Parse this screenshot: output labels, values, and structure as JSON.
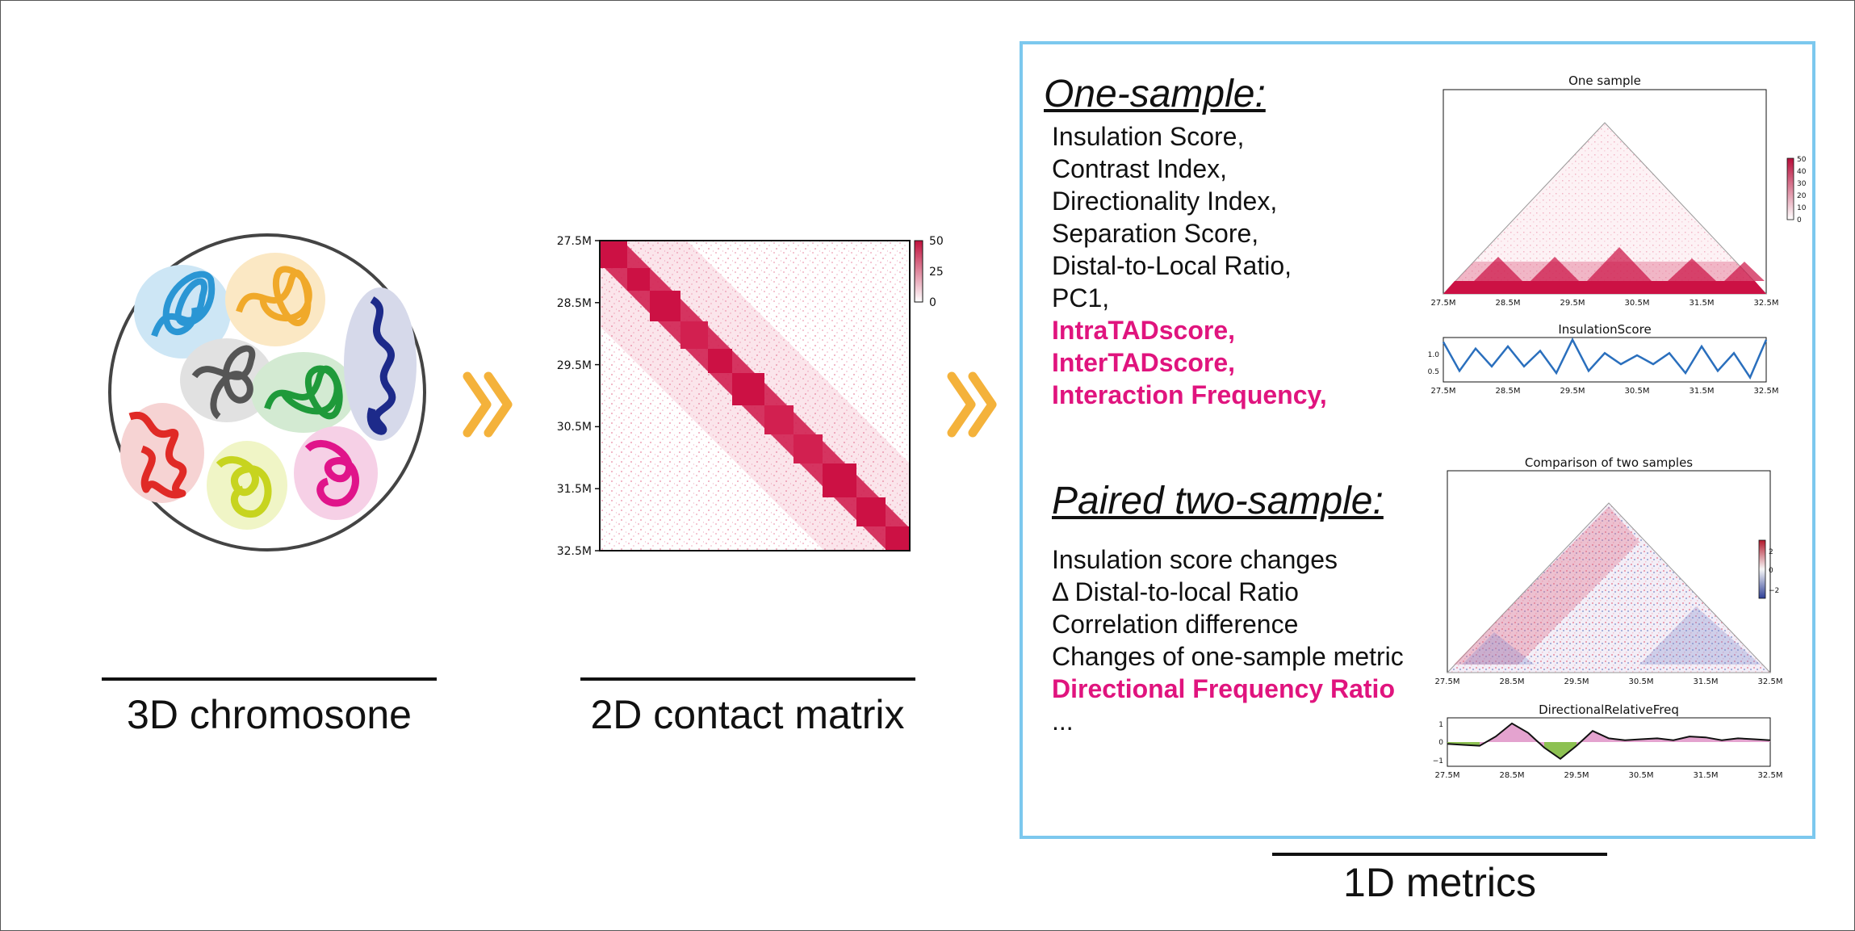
{
  "panels": {
    "chromosome": {
      "caption": "3D chromosone"
    },
    "matrix": {
      "caption": "2D contact matrix",
      "y_ticks": [
        "27.5M",
        "28.5M",
        "29.5M",
        "30.5M",
        "31.5M",
        "32.5M"
      ],
      "colorbar_ticks": [
        "50",
        "25",
        "0"
      ]
    },
    "metrics": {
      "caption": "1D metrics",
      "one_sample": {
        "heading": "One-sample:",
        "items": [
          {
            "text": "Insulation Score,",
            "highlight": false
          },
          {
            "text": "Contrast Index,",
            "highlight": false
          },
          {
            "text": "Directionality Index,",
            "highlight": false
          },
          {
            "text": "Separation Score,",
            "highlight": false
          },
          {
            "text": "Distal-to-Local Ratio,",
            "highlight": false
          },
          {
            "text": "PC1,",
            "highlight": false
          },
          {
            "text": "IntraTADscore,",
            "highlight": true
          },
          {
            "text": "InterTADscore,",
            "highlight": true
          },
          {
            "text": "Interaction Frequency,",
            "highlight": true
          }
        ]
      },
      "paired": {
        "heading": "Paired two-sample:",
        "items": [
          {
            "text": "Insulation score changes",
            "highlight": false
          },
          {
            "text": "Δ Distal-to-local Ratio",
            "highlight": false
          },
          {
            "text": "Correlation difference",
            "highlight": false
          },
          {
            "text": "Changes of one-sample metric",
            "highlight": false
          },
          {
            "text": "Directional Frequency Ratio",
            "highlight": true
          },
          {
            "text": "...",
            "highlight": false
          }
        ]
      }
    }
  },
  "mini_charts": {
    "one_sample": {
      "title": "One sample",
      "colorbar_ticks": [
        "50",
        "40",
        "30",
        "20",
        "10",
        "0"
      ]
    },
    "insulation": {
      "title": "InsulationScore",
      "y_ticks": [
        "1.0",
        "0.5"
      ]
    },
    "two_sample": {
      "title": "Comparison of two samples",
      "colorbar_ticks": [
        "2",
        "0",
        "−2"
      ]
    },
    "directional": {
      "title": "DirectionalRelativeFreq",
      "y_ticks": [
        "1",
        "0",
        "−1"
      ]
    },
    "x_ticks": [
      "27.5M",
      "28.5M",
      "29.5M",
      "30.5M",
      "31.5M",
      "32.5M"
    ]
  },
  "chart_data": [
    {
      "type": "line",
      "title": "InsulationScore",
      "x": [
        27.5,
        27.75,
        28.0,
        28.25,
        28.5,
        28.75,
        29.0,
        29.25,
        29.5,
        29.75,
        30.0,
        30.25,
        30.5,
        30.75,
        31.0,
        31.25,
        31.5,
        31.75,
        32.0,
        32.25,
        32.5
      ],
      "series": [
        {
          "values": [
            1.25,
            0.6,
            1.1,
            0.7,
            1.15,
            0.7,
            1.05,
            0.55,
            1.3,
            0.6,
            1.0,
            0.75,
            0.95,
            0.75,
            1.0,
            0.55,
            1.15,
            0.6,
            1.0,
            0.45,
            1.3
          ]
        }
      ],
      "ylim": [
        0.35,
        1.35
      ],
      "color": "#2a6fbd"
    },
    {
      "type": "area",
      "title": "DirectionalRelativeFreq",
      "x": [
        27.5,
        27.75,
        28.0,
        28.25,
        28.5,
        28.75,
        29.0,
        29.25,
        29.5,
        29.75,
        30.0,
        30.25,
        30.5,
        30.75,
        31.0,
        31.25,
        31.5,
        31.75,
        32.0,
        32.25,
        32.5
      ],
      "series": [
        {
          "values": [
            -0.1,
            -0.15,
            -0.2,
            0.3,
            1.0,
            0.5,
            -0.3,
            -0.9,
            -0.2,
            0.6,
            0.2,
            0.1,
            0.15,
            0.2,
            0.1,
            0.3,
            0.25,
            0.1,
            0.2,
            0.15,
            0.1
          ]
        }
      ],
      "ylim": [
        -1.3,
        1.3
      ],
      "positive_color": "#e4a3cf",
      "negative_color": "#8dc152"
    }
  ],
  "colors": {
    "accent_magenta": "#e0147e",
    "box_border": "#7cc8ee",
    "heat_red": "#cc1144",
    "chevron": "#f4b23b"
  }
}
